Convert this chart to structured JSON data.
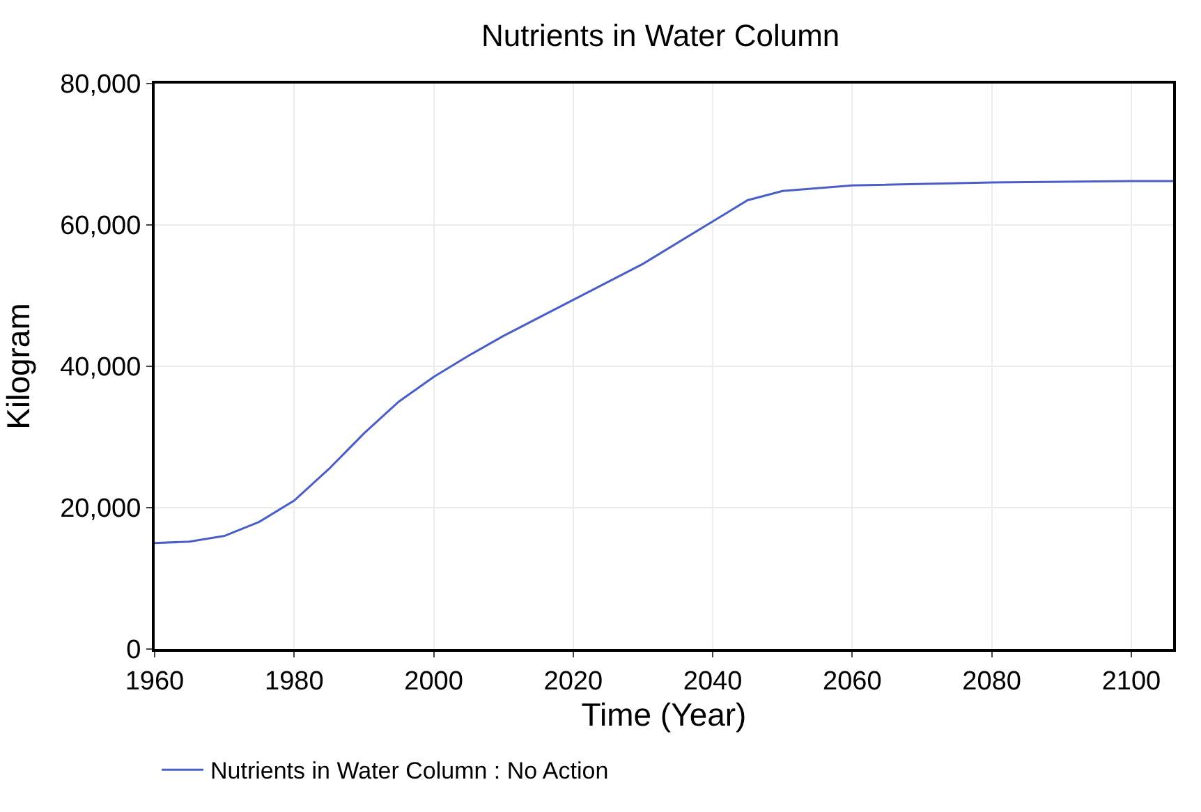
{
  "chart_data": {
    "type": "line",
    "title": "Nutrients in Water Column",
    "xlabel": "Time (Year)",
    "ylabel": "Kilogram",
    "x": [
      1960,
      1965,
      1970,
      1975,
      1980,
      1985,
      1990,
      1995,
      2000,
      2005,
      2010,
      2020,
      2030,
      2040,
      2045,
      2050,
      2060,
      2080,
      2100,
      2106
    ],
    "series": [
      {
        "name": "Nutrients in Water Column : No Action",
        "color": "#4a5ec8",
        "values": [
          15000,
          15200,
          16000,
          18000,
          21000,
          25500,
          30500,
          35000,
          38500,
          41500,
          44300,
          49400,
          54500,
          60500,
          63500,
          64800,
          65600,
          66000,
          66200,
          66200
        ]
      }
    ],
    "xlim": [
      1960,
      2106
    ],
    "xticks": [
      1960,
      1980,
      2000,
      2020,
      2040,
      2060,
      2080,
      2100
    ],
    "ylim": [
      0,
      80000
    ],
    "yticks": [
      {
        "value": 0,
        "label": "0"
      },
      {
        "value": 20000,
        "label": "20,000"
      },
      {
        "value": 40000,
        "label": "40,000"
      },
      {
        "value": 60000,
        "label": "60,000"
      },
      {
        "value": 80000,
        "label": "80,000"
      }
    ],
    "grid": true,
    "legend": "bottom",
    "marker": "none",
    "line_style": "solid"
  }
}
